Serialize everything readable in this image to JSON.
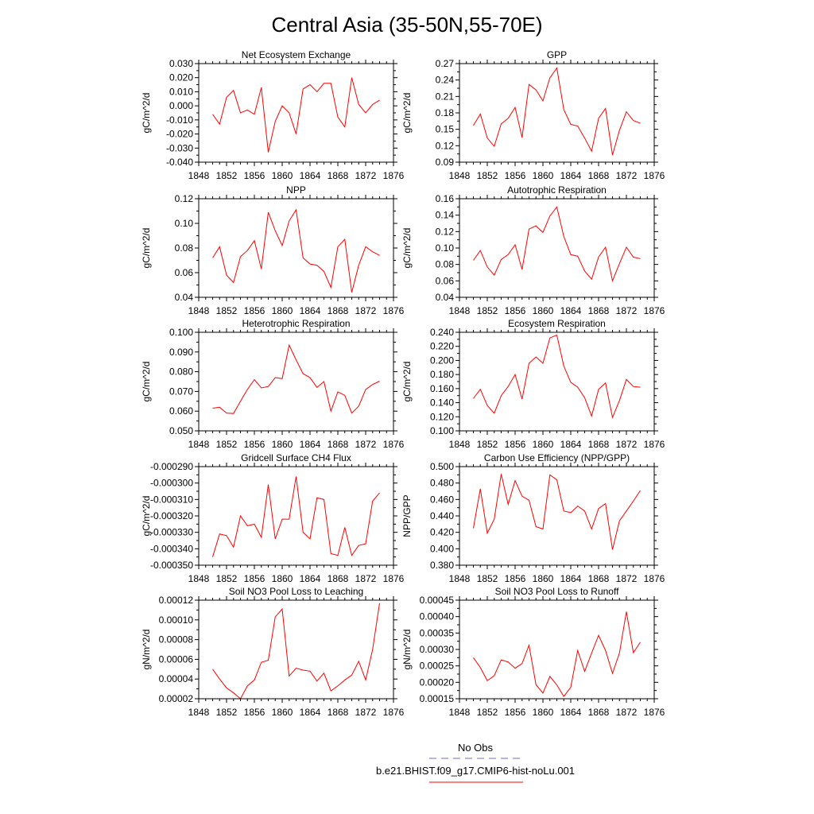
{
  "title": "Central Asia (35-50N,55-70E)",
  "legend": {
    "entries": [
      {
        "label": "No Obs",
        "color": "#6b6bd6",
        "dash": "dashed"
      },
      {
        "label": "b.e21.BHIST.f09_g17.CMIP6-hist-noLu.001",
        "color": "#ff0000",
        "dash": "solid"
      }
    ]
  },
  "chart_data": [
    {
      "type": "line",
      "title": "Net Ecosystem Exchange",
      "ylabel": "gC/m^2/d",
      "xlim": [
        1848,
        1876
      ],
      "ylim": [
        -0.04,
        0.03
      ],
      "xticks": [
        1848,
        1852,
        1856,
        1860,
        1864,
        1868,
        1872,
        1876
      ],
      "xticklabels": [
        "1848",
        "1852",
        "1856",
        "1860",
        "1864",
        "1868",
        "1872",
        "1876"
      ],
      "yticks": [
        -0.04,
        -0.03,
        -0.02,
        -0.01,
        0.0,
        0.01,
        0.02,
        0.03
      ],
      "yticklabels": [
        "-0.040",
        "-0.030",
        "-0.020",
        "-0.010",
        "0.000",
        "0.010",
        "0.020",
        "0.030"
      ],
      "series": [
        {
          "color": "#ff0000",
          "x": [
            1850,
            1851,
            1852,
            1853,
            1854,
            1855,
            1856,
            1857,
            1858,
            1859,
            1860,
            1861,
            1862,
            1863,
            1864,
            1865,
            1866,
            1867,
            1868,
            1869,
            1870,
            1871,
            1872,
            1873,
            1874
          ],
          "values": [
            -0.006,
            -0.013,
            0.006,
            0.011,
            -0.005,
            -0.003,
            -0.006,
            0.013,
            -0.033,
            -0.011,
            0.0,
            -0.005,
            -0.02,
            0.012,
            0.015,
            0.01,
            0.016,
            0.016,
            -0.008,
            -0.015,
            0.02,
            0.001,
            -0.005,
            0.001,
            0.004
          ]
        }
      ]
    },
    {
      "type": "line",
      "title": "GPP",
      "ylabel": "gC/m^2/d",
      "xlim": [
        1848,
        1876
      ],
      "ylim": [
        0.09,
        0.27
      ],
      "xticks": [
        1848,
        1852,
        1856,
        1860,
        1864,
        1868,
        1872,
        1876
      ],
      "xticklabels": [
        "1848",
        "1852",
        "1856",
        "1860",
        "1864",
        "1868",
        "1872",
        "1876"
      ],
      "yticks": [
        0.09,
        0.12,
        0.15,
        0.18,
        0.21,
        0.24,
        0.27
      ],
      "yticklabels": [
        "0.09",
        "0.12",
        "0.15",
        "0.18",
        "0.21",
        "0.24",
        "0.27"
      ],
      "series": [
        {
          "color": "#ff0000",
          "x": [
            1850,
            1851,
            1852,
            1853,
            1854,
            1855,
            1856,
            1857,
            1858,
            1859,
            1860,
            1861,
            1862,
            1863,
            1864,
            1865,
            1866,
            1867,
            1868,
            1869,
            1870,
            1871,
            1872,
            1873,
            1874
          ],
          "values": [
            0.157,
            0.178,
            0.134,
            0.119,
            0.16,
            0.17,
            0.19,
            0.135,
            0.232,
            0.222,
            0.202,
            0.244,
            0.262,
            0.186,
            0.159,
            0.156,
            0.134,
            0.11,
            0.17,
            0.188,
            0.103,
            0.148,
            0.182,
            0.166,
            0.161
          ]
        }
      ]
    },
    {
      "type": "line",
      "title": "NPP",
      "ylabel": "gC/m^2/d",
      "xlim": [
        1848,
        1876
      ],
      "ylim": [
        0.04,
        0.12
      ],
      "xticks": [
        1848,
        1852,
        1856,
        1860,
        1864,
        1868,
        1872,
        1876
      ],
      "xticklabels": [
        "1848",
        "1852",
        "1856",
        "1860",
        "1864",
        "1868",
        "1872",
        "1876"
      ],
      "yticks": [
        0.04,
        0.06,
        0.08,
        0.1,
        0.12
      ],
      "yticklabels": [
        "0.04",
        "0.06",
        "0.08",
        "0.10",
        "0.12"
      ],
      "series": [
        {
          "color": "#ff0000",
          "x": [
            1850,
            1851,
            1852,
            1853,
            1854,
            1855,
            1856,
            1857,
            1858,
            1859,
            1860,
            1861,
            1862,
            1863,
            1864,
            1865,
            1866,
            1867,
            1868,
            1869,
            1870,
            1871,
            1872,
            1873,
            1874
          ],
          "values": [
            0.072,
            0.081,
            0.058,
            0.052,
            0.073,
            0.078,
            0.086,
            0.063,
            0.109,
            0.094,
            0.082,
            0.102,
            0.111,
            0.072,
            0.067,
            0.066,
            0.061,
            0.048,
            0.081,
            0.087,
            0.044,
            0.066,
            0.081,
            0.077,
            0.074
          ]
        }
      ]
    },
    {
      "type": "line",
      "title": "Autotrophic Respiration",
      "ylabel": "gC/m^2/d",
      "xlim": [
        1848,
        1876
      ],
      "ylim": [
        0.04,
        0.16
      ],
      "xticks": [
        1848,
        1852,
        1856,
        1860,
        1864,
        1868,
        1872,
        1876
      ],
      "xticklabels": [
        "1848",
        "1852",
        "1856",
        "1860",
        "1864",
        "1868",
        "1872",
        "1876"
      ],
      "yticks": [
        0.04,
        0.06,
        0.08,
        0.1,
        0.12,
        0.14,
        0.16
      ],
      "yticklabels": [
        "0.04",
        "0.06",
        "0.08",
        "0.10",
        "0.12",
        "0.14",
        "0.16"
      ],
      "series": [
        {
          "color": "#ff0000",
          "x": [
            1850,
            1851,
            1852,
            1853,
            1854,
            1855,
            1856,
            1857,
            1858,
            1859,
            1860,
            1861,
            1862,
            1863,
            1864,
            1865,
            1866,
            1867,
            1868,
            1869,
            1870,
            1871,
            1872,
            1873,
            1874
          ],
          "values": [
            0.085,
            0.097,
            0.077,
            0.067,
            0.086,
            0.092,
            0.104,
            0.074,
            0.123,
            0.127,
            0.119,
            0.139,
            0.15,
            0.114,
            0.092,
            0.09,
            0.072,
            0.062,
            0.089,
            0.101,
            0.06,
            0.081,
            0.101,
            0.089,
            0.087
          ]
        }
      ]
    },
    {
      "type": "line",
      "title": "Heterotrophic Respiration",
      "ylabel": "gC/m^2/d",
      "xlim": [
        1848,
        1876
      ],
      "ylim": [
        0.05,
        0.1
      ],
      "xticks": [
        1848,
        1852,
        1856,
        1860,
        1864,
        1868,
        1872,
        1876
      ],
      "xticklabels": [
        "1848",
        "1852",
        "1856",
        "1860",
        "1864",
        "1868",
        "1872",
        "1876"
      ],
      "yticks": [
        0.05,
        0.06,
        0.07,
        0.08,
        0.09,
        0.1
      ],
      "yticklabels": [
        "0.050",
        "0.060",
        "0.070",
        "0.080",
        "0.090",
        "0.100"
      ],
      "series": [
        {
          "color": "#ff0000",
          "x": [
            1850,
            1851,
            1852,
            1853,
            1854,
            1855,
            1856,
            1857,
            1858,
            1859,
            1860,
            1861,
            1862,
            1863,
            1864,
            1865,
            1866,
            1867,
            1868,
            1869,
            1870,
            1871,
            1872,
            1873,
            1874
          ],
          "values": [
            0.0615,
            0.062,
            0.059,
            0.0588,
            0.065,
            0.071,
            0.076,
            0.0718,
            0.0725,
            0.077,
            0.0765,
            0.0935,
            0.086,
            0.079,
            0.077,
            0.072,
            0.075,
            0.06,
            0.0698,
            0.068,
            0.059,
            0.0625,
            0.071,
            0.0735,
            0.0752
          ]
        }
      ]
    },
    {
      "type": "line",
      "title": "Ecosystem Respiration",
      "ylabel": "gC/m^2/d",
      "xlim": [
        1848,
        1876
      ],
      "ylim": [
        0.1,
        0.24
      ],
      "xticks": [
        1848,
        1852,
        1856,
        1860,
        1864,
        1868,
        1872,
        1876
      ],
      "xticklabels": [
        "1848",
        "1852",
        "1856",
        "1860",
        "1864",
        "1868",
        "1872",
        "1876"
      ],
      "yticks": [
        0.1,
        0.12,
        0.14,
        0.16,
        0.18,
        0.2,
        0.22,
        0.24
      ],
      "yticklabels": [
        "0.100",
        "0.120",
        "0.140",
        "0.160",
        "0.180",
        "0.200",
        "0.220",
        "0.240"
      ],
      "series": [
        {
          "color": "#ff0000",
          "x": [
            1850,
            1851,
            1852,
            1853,
            1854,
            1855,
            1856,
            1857,
            1858,
            1859,
            1860,
            1861,
            1862,
            1863,
            1864,
            1865,
            1866,
            1867,
            1868,
            1869,
            1870,
            1871,
            1872,
            1873,
            1874
          ],
          "values": [
            0.146,
            0.159,
            0.136,
            0.125,
            0.15,
            0.163,
            0.18,
            0.145,
            0.196,
            0.205,
            0.196,
            0.232,
            0.236,
            0.192,
            0.169,
            0.162,
            0.147,
            0.121,
            0.159,
            0.168,
            0.119,
            0.143,
            0.173,
            0.163,
            0.162
          ]
        }
      ]
    },
    {
      "type": "line",
      "title": "Gridcell Surface CH4 Flux",
      "ylabel": "gC/m^2/d",
      "xlim": [
        1848,
        1876
      ],
      "ylim": [
        -0.00035,
        -0.00029
      ],
      "xticks": [
        1848,
        1852,
        1856,
        1860,
        1864,
        1868,
        1872,
        1876
      ],
      "xticklabels": [
        "1848",
        "1852",
        "1856",
        "1860",
        "1864",
        "1868",
        "1872",
        "1876"
      ],
      "yticks": [
        -0.00035,
        -0.00034,
        -0.00033,
        -0.00032,
        -0.00031,
        -0.0003,
        -0.00029
      ],
      "yticklabels": [
        "-0.000350",
        "-0.000340",
        "-0.000330",
        "-0.000320",
        "-0.000310",
        "-0.000300",
        "-0.000290"
      ],
      "series": [
        {
          "color": "#ff0000",
          "x": [
            1850,
            1851,
            1852,
            1853,
            1854,
            1855,
            1856,
            1857,
            1858,
            1859,
            1860,
            1861,
            1862,
            1863,
            1864,
            1865,
            1866,
            1867,
            1868,
            1869,
            1870,
            1871,
            1872,
            1873,
            1874
          ],
          "values": [
            -0.000345,
            -0.000331,
            -0.000332,
            -0.000339,
            -0.00032,
            -0.000326,
            -0.000325,
            -0.000333,
            -0.000301,
            -0.000334,
            -0.000322,
            -0.000322,
            -0.000296,
            -0.00033,
            -0.000334,
            -0.000309,
            -0.00031,
            -0.000343,
            -0.000344,
            -0.000327,
            -0.000344,
            -0.000338,
            -0.000337,
            -0.000311,
            -0.000306
          ]
        }
      ]
    },
    {
      "type": "line",
      "title": "Carbon Use Efficiency (NPP/GPP)",
      "ylabel": "NPP/GPP",
      "xlim": [
        1848,
        1876
      ],
      "ylim": [
        0.38,
        0.5
      ],
      "xticks": [
        1848,
        1852,
        1856,
        1860,
        1864,
        1868,
        1872,
        1876
      ],
      "xticklabels": [
        "1848",
        "1852",
        "1856",
        "1860",
        "1864",
        "1868",
        "1872",
        "1876"
      ],
      "yticks": [
        0.38,
        0.4,
        0.42,
        0.44,
        0.46,
        0.48,
        0.5
      ],
      "yticklabels": [
        "0.380",
        "0.400",
        "0.420",
        "0.440",
        "0.460",
        "0.480",
        "0.500"
      ],
      "series": [
        {
          "color": "#ff0000",
          "x": [
            1850,
            1851,
            1852,
            1853,
            1854,
            1855,
            1856,
            1857,
            1858,
            1859,
            1860,
            1861,
            1862,
            1863,
            1864,
            1865,
            1866,
            1867,
            1868,
            1869,
            1870,
            1871,
            1872,
            1873,
            1874
          ],
          "values": [
            0.425,
            0.473,
            0.419,
            0.436,
            0.491,
            0.454,
            0.483,
            0.464,
            0.459,
            0.427,
            0.424,
            0.49,
            0.484,
            0.446,
            0.444,
            0.452,
            0.446,
            0.424,
            0.449,
            0.455,
            0.399,
            0.434,
            0.446,
            0.458,
            0.471
          ]
        }
      ]
    },
    {
      "type": "line",
      "title": "Soil NO3 Pool Loss to Leaching",
      "ylabel": "gN/m^2/d",
      "xlim": [
        1848,
        1876
      ],
      "ylim": [
        2e-05,
        0.00012
      ],
      "xticks": [
        1848,
        1852,
        1856,
        1860,
        1864,
        1868,
        1872,
        1876
      ],
      "xticklabels": [
        "1848",
        "1852",
        "1856",
        "1860",
        "1864",
        "1868",
        "1872",
        "1876"
      ],
      "yticks": [
        2e-05,
        4e-05,
        6e-05,
        8e-05,
        0.0001,
        0.00012
      ],
      "yticklabels": [
        "0.00002",
        "0.00004",
        "0.00006",
        "0.00008",
        "0.00010",
        "0.00012"
      ],
      "series": [
        {
          "color": "#ff0000",
          "x": [
            1850,
            1851,
            1852,
            1853,
            1854,
            1855,
            1856,
            1857,
            1858,
            1859,
            1860,
            1861,
            1862,
            1863,
            1864,
            1865,
            1866,
            1867,
            1868,
            1869,
            1870,
            1871,
            1872,
            1873,
            1874
          ],
          "values": [
            5e-05,
            4e-05,
            3.1e-05,
            2.6e-05,
            2e-05,
            3.3e-05,
            3.9e-05,
            5.7e-05,
            5.9e-05,
            0.000103,
            0.000111,
            4.3e-05,
            5.1e-05,
            4.9e-05,
            4.8e-05,
            3.8e-05,
            4.6e-05,
            2.8e-05,
            3.3e-05,
            3.9e-05,
            4.4e-05,
            5.8e-05,
            3.9e-05,
            7e-05,
            0.000117
          ]
        }
      ]
    },
    {
      "type": "line",
      "title": "Soil NO3 Pool Loss to Runoff",
      "ylabel": "gN/m^2/d",
      "xlim": [
        1848,
        1876
      ],
      "ylim": [
        0.00015,
        0.00045
      ],
      "xticks": [
        1848,
        1852,
        1856,
        1860,
        1864,
        1868,
        1872,
        1876
      ],
      "xticklabels": [
        "1848",
        "1852",
        "1856",
        "1860",
        "1864",
        "1868",
        "1872",
        "1876"
      ],
      "yticks": [
        0.00015,
        0.0002,
        0.00025,
        0.0003,
        0.00035,
        0.0004,
        0.00045
      ],
      "yticklabels": [
        "0.00015",
        "0.00020",
        "0.00025",
        "0.00030",
        "0.00035",
        "0.00040",
        "0.00045"
      ],
      "series": [
        {
          "color": "#ff0000",
          "x": [
            1850,
            1851,
            1852,
            1853,
            1854,
            1855,
            1856,
            1857,
            1858,
            1859,
            1860,
            1861,
            1862,
            1863,
            1864,
            1865,
            1866,
            1867,
            1868,
            1869,
            1870,
            1871,
            1872,
            1873,
            1874
          ],
          "values": [
            0.000275,
            0.000245,
            0.000205,
            0.00022,
            0.000268,
            0.000262,
            0.000243,
            0.000257,
            0.000313,
            0.000193,
            0.000167,
            0.000218,
            0.000192,
            0.000157,
            0.000185,
            0.000297,
            0.000233,
            0.000289,
            0.000343,
            0.000297,
            0.000227,
            0.000289,
            0.000415,
            0.00029,
            0.000322
          ]
        }
      ]
    }
  ]
}
